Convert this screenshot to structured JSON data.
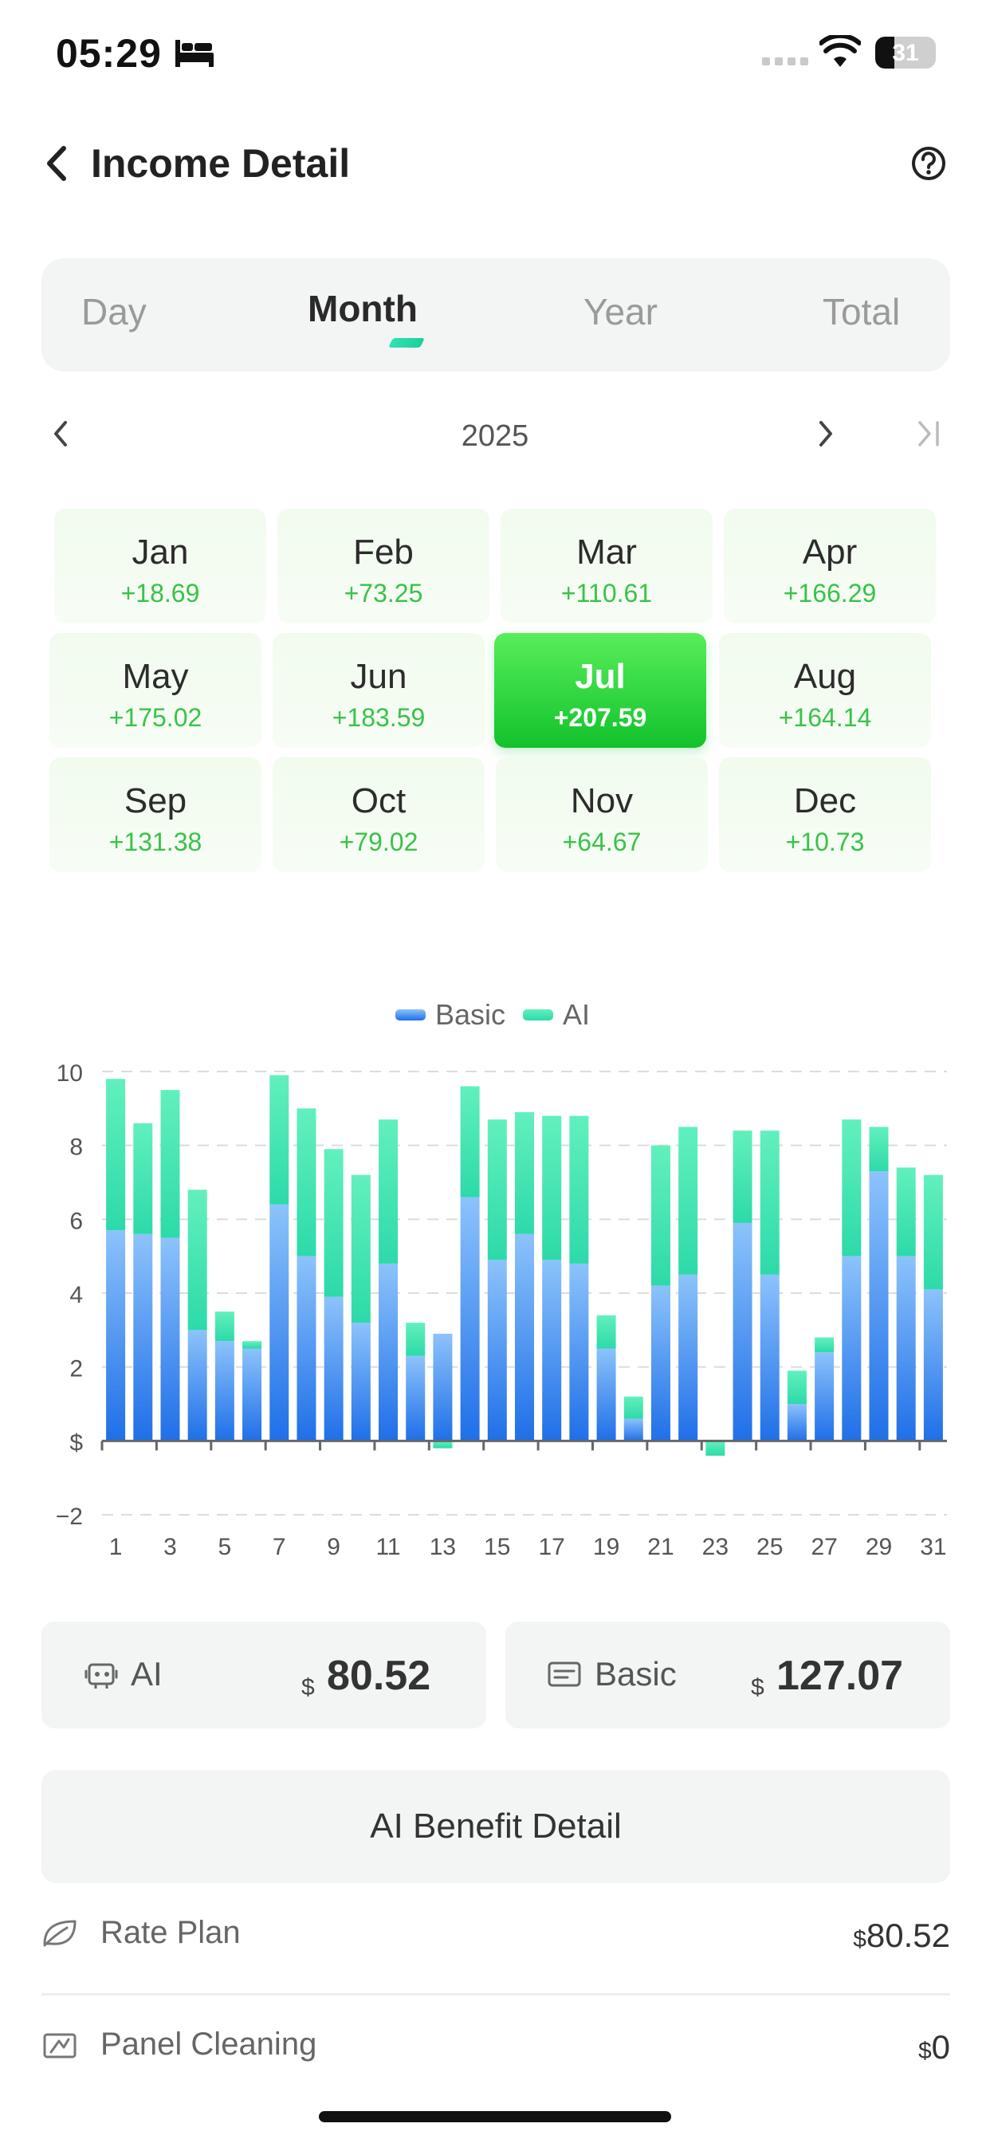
{
  "status_bar": {
    "time": "05:29",
    "battery": "31",
    "battery_level": 0.31
  },
  "header": {
    "title": "Income Detail"
  },
  "tabs": [
    {
      "label": "Day",
      "active": false
    },
    {
      "label": "Month",
      "active": true
    },
    {
      "label": "Year",
      "active": false
    },
    {
      "label": "Total",
      "active": false
    }
  ],
  "year_nav": {
    "year": "2025"
  },
  "months": [
    {
      "name": "Jan",
      "value": "+18.69",
      "selected": false
    },
    {
      "name": "Feb",
      "value": "+73.25",
      "selected": false
    },
    {
      "name": "Mar",
      "value": "+110.61",
      "selected": false
    },
    {
      "name": "Apr",
      "value": "+166.29",
      "selected": false
    },
    {
      "name": "May",
      "value": "+175.02",
      "selected": false
    },
    {
      "name": "Jun",
      "value": "+183.59",
      "selected": false
    },
    {
      "name": "Jul",
      "value": "+207.59",
      "selected": true
    },
    {
      "name": "Aug",
      "value": "+164.14",
      "selected": false
    },
    {
      "name": "Sep",
      "value": "+131.38",
      "selected": false
    },
    {
      "name": "Oct",
      "value": "+79.02",
      "selected": false
    },
    {
      "name": "Nov",
      "value": "+64.67",
      "selected": false
    },
    {
      "name": "Dec",
      "value": "+10.73",
      "selected": false
    }
  ],
  "chart_data": {
    "type": "bar",
    "stacked": true,
    "legend_position": "top-center",
    "legend": [
      "Basic",
      "AI"
    ],
    "x": [
      1,
      2,
      3,
      4,
      5,
      6,
      7,
      8,
      9,
      10,
      11,
      12,
      13,
      14,
      15,
      16,
      17,
      18,
      19,
      20,
      21,
      22,
      23,
      24,
      25,
      26,
      27,
      28,
      29,
      30,
      31
    ],
    "x_tick_labels": [
      "1",
      "3",
      "5",
      "7",
      "9",
      "11",
      "13",
      "15",
      "17",
      "19",
      "21",
      "23",
      "25",
      "27",
      "29",
      "31"
    ],
    "y_tick_labels": [
      "10",
      "8",
      "6",
      "4",
      "2",
      "$",
      "−2"
    ],
    "ylim": [
      -2,
      10
    ],
    "grid": true,
    "series": [
      {
        "name": "Basic",
        "color": "#2a77ee",
        "values": [
          5.7,
          5.6,
          5.5,
          3.0,
          2.7,
          2.5,
          6.4,
          5.0,
          3.9,
          3.2,
          4.8,
          2.3,
          2.9,
          6.6,
          4.9,
          5.6,
          4.9,
          4.8,
          2.5,
          0.6,
          4.2,
          4.5,
          0.0,
          5.9,
          4.5,
          1.0,
          2.4,
          5.0,
          7.3,
          5.0,
          4.1
        ]
      },
      {
        "name": "AI",
        "color": "#2fe0b0",
        "values": [
          4.1,
          3.0,
          4.0,
          3.8,
          0.8,
          0.2,
          3.5,
          4.0,
          4.0,
          4.0,
          3.9,
          0.9,
          -0.2,
          3.0,
          3.8,
          3.3,
          3.9,
          4.0,
          0.9,
          0.6,
          3.8,
          4.0,
          -0.4,
          2.5,
          3.9,
          0.9,
          0.4,
          3.7,
          1.2,
          2.4,
          3.1
        ]
      }
    ]
  },
  "cards": {
    "ai": {
      "label": "AI",
      "currency": "$",
      "value": "80.52"
    },
    "basic": {
      "label": "Basic",
      "currency": "$",
      "value": "127.07"
    }
  },
  "benefit_button": {
    "label": "AI Benefit Detail"
  },
  "details": [
    {
      "label": "Rate Plan",
      "currency": "$",
      "value": "80.52"
    },
    {
      "label": "Panel Cleaning",
      "currency": "$",
      "value": "0"
    }
  ]
}
